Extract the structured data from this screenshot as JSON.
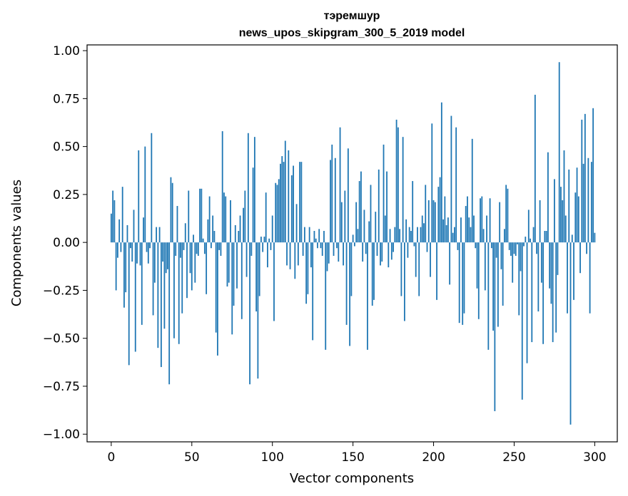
{
  "chart_data": {
    "type": "bar",
    "title_line1": "тэремшур",
    "title_line2": "news_upos_skipgram_300_5_2019 model",
    "xlabel": "Vector components",
    "ylabel": "Components values",
    "xlim": [
      -15,
      314
    ],
    "ylim": [
      -1.04,
      1.03
    ],
    "xticks": [
      0,
      50,
      100,
      150,
      200,
      250,
      300
    ],
    "xtick_labels": [
      "0",
      "50",
      "100",
      "150",
      "200",
      "250",
      "300"
    ],
    "yticks": [
      1.0,
      0.75,
      0.5,
      0.25,
      0.0,
      -0.25,
      -0.5,
      -0.75,
      -1.0
    ],
    "ytick_labels": [
      "1.00",
      "0.75",
      "0.50",
      "0.25",
      "0.00",
      "−0.25",
      "−0.50",
      "−0.75",
      "−1.00"
    ],
    "bar_color": "#1f77b4",
    "grid": false,
    "values": [
      0.15,
      0.27,
      0.22,
      -0.25,
      -0.08,
      0.12,
      -0.05,
      0.29,
      -0.34,
      -0.26,
      0.09,
      -0.64,
      -0.03,
      -0.1,
      0.17,
      -0.57,
      -0.11,
      0.48,
      -0.12,
      -0.43,
      0.13,
      0.5,
      -0.05,
      -0.11,
      -0.03,
      0.57,
      -0.38,
      -0.21,
      0.08,
      -0.55,
      0.08,
      -0.65,
      -0.1,
      -0.45,
      -0.16,
      -0.14,
      -0.74,
      0.34,
      0.31,
      -0.5,
      -0.07,
      0.19,
      -0.53,
      -0.08,
      -0.37,
      -0.04,
      0.1,
      -0.29,
      0.27,
      -0.16,
      -0.25,
      0.04,
      -0.21,
      -0.06,
      -0.07,
      0.28,
      0.28,
      0.02,
      -0.06,
      -0.27,
      0.12,
      0.24,
      -0.03,
      0.14,
      0.06,
      -0.47,
      -0.59,
      -0.04,
      -0.07,
      0.58,
      0.26,
      0.24,
      -0.23,
      -0.21,
      0.22,
      -0.48,
      -0.33,
      0.09,
      -0.24,
      0.06,
      0.14,
      -0.4,
      0.18,
      0.27,
      -0.18,
      0.57,
      -0.74,
      -0.07,
      0.39,
      0.55,
      -0.36,
      -0.71,
      -0.28,
      0.03,
      -0.05,
      0.03,
      0.26,
      -0.13,
      0.02,
      -0.04,
      0.14,
      -0.41,
      0.31,
      0.3,
      0.33,
      0.41,
      0.45,
      0.42,
      0.53,
      -0.12,
      0.48,
      -0.14,
      0.35,
      0.4,
      -0.19,
      0.2,
      -0.12,
      0.42,
      0.42,
      -0.07,
      0.08,
      -0.32,
      -0.27,
      0.08,
      -0.13,
      -0.51,
      0.06,
      0.02,
      -0.03,
      0.07,
      -0.03,
      -0.07,
      0.06,
      -0.56,
      -0.15,
      -0.11,
      0.43,
      0.51,
      -0.07,
      0.44,
      -0.03,
      -0.1,
      0.6,
      0.21,
      -0.12,
      0.27,
      -0.43,
      0.49,
      -0.54,
      -0.28,
      0.04,
      -0.02,
      0.21,
      0.07,
      0.32,
      0.37,
      -0.1,
      0.17,
      -0.06,
      -0.56,
      0.11,
      0.3,
      -0.33,
      -0.3,
      0.16,
      -0.07,
      0.38,
      -0.12,
      -0.1,
      0.51,
      0.14,
      0.37,
      -0.13,
      0.07,
      -0.09,
      -0.05,
      0.08,
      0.64,
      0.6,
      0.07,
      -0.28,
      0.55,
      -0.41,
      0.12,
      -0.08,
      0.08,
      0.06,
      0.32,
      -0.02,
      -0.18,
      0.08,
      -0.28,
      0.08,
      0.14,
      0.1,
      0.3,
      -0.05,
      0.22,
      -0.18,
      0.62,
      0.22,
      0.21,
      -0.3,
      0.29,
      0.34,
      0.73,
      0.12,
      0.24,
      0.09,
      0.13,
      -0.22,
      0.66,
      0.05,
      0.08,
      0.6,
      -0.04,
      -0.42,
      0.13,
      -0.43,
      -0.37,
      0.19,
      0.24,
      0.13,
      0.08,
      0.54,
      0.14,
      -0.03,
      -0.24,
      -0.4,
      0.23,
      0.24,
      0.07,
      -0.25,
      0.14,
      -0.56,
      0.23,
      -0.03,
      -0.46,
      -0.88,
      -0.08,
      -0.44,
      0.21,
      -0.14,
      -0.33,
      0.07,
      0.3,
      0.28,
      -0.04,
      -0.07,
      -0.21,
      -0.06,
      -0.07,
      -0.01,
      -0.38,
      -0.15,
      -0.82,
      -0.02,
      0.03,
      -0.63,
      0.17,
      0.02,
      -0.52,
      0.08,
      0.77,
      -0.06,
      -0.36,
      0.22,
      -0.21,
      -0.53,
      0.06,
      0.06,
      0.47,
      -0.24,
      -0.32,
      -0.52,
      0.33,
      -0.47,
      -0.17,
      0.94,
      0.29,
      0.22,
      0.48,
      0.14,
      -0.37,
      0.38,
      -0.95,
      0.04,
      -0.3,
      0.26,
      0.39,
      0.24,
      -0.16,
      0.64,
      0.41,
      0.67,
      -0.06,
      0.44,
      -0.37,
      0.42,
      0.7,
      0.05
    ]
  }
}
